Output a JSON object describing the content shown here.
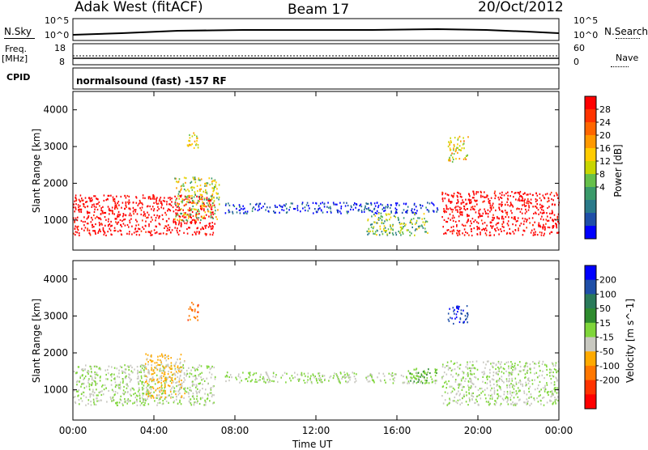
{
  "header": {
    "station": "Adak West (fitACF)",
    "beam": "Beam 17",
    "date": "20/Oct/2012"
  },
  "panels": {
    "nsky_label": "N.Sky",
    "nsearch_label": "N.Search",
    "nsky_ticks": [
      "10^5",
      "10^0"
    ],
    "nsearch_ticks": [
      "10^5",
      "10^0"
    ],
    "freq_label": "Freq.",
    "freq_unit": "[MHz]",
    "freq_ticks": [
      "18",
      "8"
    ],
    "nave_label": "Nave",
    "nave_ticks": [
      "60",
      "0"
    ],
    "cpid_label": "CPID",
    "cpid_value": "normalsound (fast) -157 RF"
  },
  "chart_data": [
    {
      "type": "heatmap",
      "name": "power",
      "ylabel": "Slant Range [km]",
      "yticks": [
        "4000",
        "3000",
        "2000",
        "1000"
      ],
      "ylim": [
        180,
        4500
      ],
      "colorbar": {
        "label": "Power [dB]",
        "ticks": [
          "28",
          "24",
          "20",
          "16",
          "12",
          "8",
          "4"
        ],
        "colors": [
          "#ff0000",
          "#ff3300",
          "#ff6600",
          "#ff9900",
          "#ffcc00",
          "#c8d600",
          "#66c04a",
          "#3a9a6a",
          "#2a7a8a",
          "#1f4fa8",
          "#0000ff"
        ]
      },
      "regions": [
        {
          "x": [
            0.0,
            7.0
          ],
          "y": [
            600,
            1700
          ],
          "value": 30
        },
        {
          "x": [
            5.0,
            7.2
          ],
          "y": [
            1000,
            2200
          ],
          "value": 16
        },
        {
          "x": [
            5.6,
            6.2
          ],
          "y": [
            2900,
            3400
          ],
          "value": 18
        },
        {
          "x": [
            7.5,
            18.0
          ],
          "y": [
            1200,
            1500
          ],
          "value": 6
        },
        {
          "x": [
            14.5,
            17.5
          ],
          "y": [
            600,
            1200
          ],
          "value": 14
        },
        {
          "x": [
            18.2,
            24.0
          ],
          "y": [
            600,
            1800
          ],
          "value": 30
        },
        {
          "x": [
            18.5,
            19.5
          ],
          "y": [
            2600,
            3300
          ],
          "value": 18
        }
      ]
    },
    {
      "type": "heatmap",
      "name": "velocity",
      "xlabel": "Time UT",
      "ylabel": "Slant Range [km]",
      "xticks": [
        "00:00",
        "04:00",
        "08:00",
        "12:00",
        "16:00",
        "20:00",
        "00:00"
      ],
      "yticks": [
        "4000",
        "3000",
        "2000",
        "1000"
      ],
      "ylim": [
        180,
        4500
      ],
      "colorbar": {
        "label": "Velocity [m s^-1]",
        "ticks": [
          "200",
          "100",
          "50",
          "15",
          "-15",
          "-50",
          "-100",
          "-200"
        ],
        "colors": [
          "#0000ff",
          "#1f4fa8",
          "#2a7a5a",
          "#2e8b2e",
          "#7fd63a",
          "#c8c8c0",
          "#ffaa00",
          "#ff7700",
          "#ff3300",
          "#ff0000"
        ]
      },
      "regions": [
        {
          "x": [
            0.0,
            7.0
          ],
          "y": [
            600,
            1700
          ],
          "value": 0
        },
        {
          "x": [
            3.5,
            5.5
          ],
          "y": [
            800,
            2000
          ],
          "value": -50
        },
        {
          "x": [
            5.6,
            6.2
          ],
          "y": [
            2900,
            3400
          ],
          "value": -100
        },
        {
          "x": [
            7.5,
            18.0
          ],
          "y": [
            1200,
            1500
          ],
          "value": 0
        },
        {
          "x": [
            16.5,
            18.0
          ],
          "y": [
            1200,
            1600
          ],
          "value": 30
        },
        {
          "x": [
            18.2,
            24.0
          ],
          "y": [
            600,
            1800
          ],
          "value": 0
        },
        {
          "x": [
            18.5,
            19.5
          ],
          "y": [
            2800,
            3300
          ],
          "value": 150
        }
      ]
    }
  ]
}
